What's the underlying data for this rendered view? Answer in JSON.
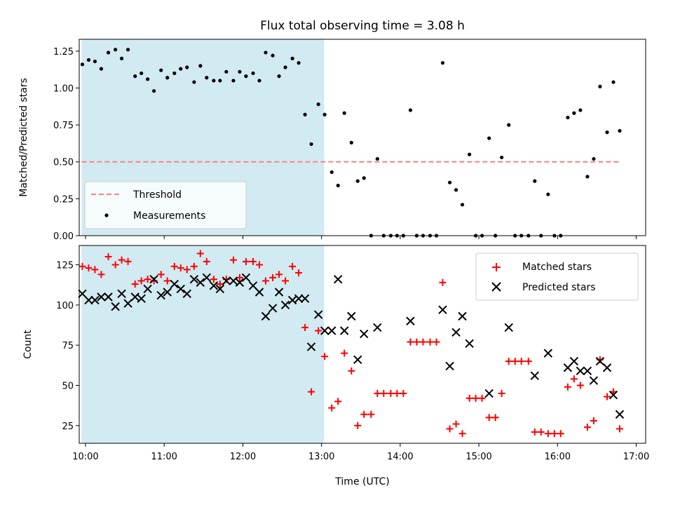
{
  "chart_data": [
    {
      "type": "scatter",
      "title": "Flux total observing time = 3.08 h",
      "xlabel": "",
      "ylabel": "Matched/Predicted stars",
      "xlim": [
        9.92,
        17.12
      ],
      "ylim": [
        0.0,
        1.33
      ],
      "yticks": [
        "0.00",
        "0.25",
        "0.50",
        "0.75",
        "1.00",
        "1.25"
      ],
      "yticks_values": [
        0,
        0.25,
        0.5,
        0.75,
        1.0,
        1.25
      ],
      "shaded_x_range": [
        "9:57",
        "13:02"
      ],
      "shaded_color": "#add8e6",
      "threshold": {
        "name": "Threshold",
        "value": 0.5,
        "x_range": [
          9.95,
          16.78
        ],
        "color": "#ff7f7f"
      },
      "legend": [
        "Threshold",
        "Measurements"
      ],
      "legend_position": "lower left",
      "series": [
        {
          "name": "Measurements",
          "color": "#000000",
          "x": [
            9.96,
            10.04,
            10.12,
            10.2,
            10.29,
            10.38,
            10.46,
            10.54,
            10.63,
            10.71,
            10.79,
            10.87,
            10.96,
            11.04,
            11.13,
            11.21,
            11.29,
            11.38,
            11.46,
            11.54,
            11.63,
            11.71,
            11.79,
            11.88,
            11.96,
            12.04,
            12.13,
            12.21,
            12.29,
            12.38,
            12.46,
            12.54,
            12.63,
            12.71,
            12.79,
            12.87,
            12.96,
            13.04,
            13.13,
            13.21,
            13.29,
            13.38,
            13.46,
            13.54,
            13.63,
            13.71,
            13.79,
            13.88,
            13.96,
            14.04,
            14.13,
            14.21,
            14.29,
            14.38,
            14.46,
            14.54,
            14.63,
            14.71,
            14.79,
            14.88,
            14.96,
            15.04,
            15.13,
            15.21,
            15.29,
            15.38,
            15.46,
            15.54,
            15.63,
            15.71,
            15.79,
            15.88,
            15.96,
            16.04,
            16.13,
            16.21,
            16.29,
            16.38,
            16.46,
            16.54,
            16.63,
            16.71,
            16.79
          ],
          "y": [
            1.16,
            1.19,
            1.18,
            1.13,
            1.24,
            1.26,
            1.2,
            1.26,
            1.08,
            1.1,
            1.06,
            0.98,
            1.12,
            1.07,
            1.1,
            1.13,
            1.14,
            1.04,
            1.15,
            1.07,
            1.05,
            1.05,
            1.11,
            1.05,
            1.11,
            1.08,
            1.1,
            1.05,
            1.24,
            1.22,
            1.08,
            1.14,
            1.2,
            1.17,
            0.82,
            0.62,
            0.89,
            0.82,
            0.43,
            0.34,
            0.83,
            0.63,
            0.37,
            0.39,
            0.0,
            0.52,
            0.0,
            0.0,
            0.0,
            0.0,
            0.85,
            0.0,
            0.0,
            0.0,
            0.0,
            1.17,
            0.36,
            0.31,
            0.21,
            0.55,
            0.0,
            0.0,
            0.66,
            0.0,
            0.53,
            0.75,
            0.0,
            0.0,
            0.0,
            0.37,
            0.0,
            0.28,
            0.0,
            0.0,
            0.8,
            0.83,
            0.85,
            0.4,
            0.52,
            1.01,
            0.7,
            1.04,
            0.71
          ]
        }
      ]
    },
    {
      "type": "scatter",
      "title": "",
      "xlabel": "Time (UTC)",
      "ylabel": "Count",
      "xlim": [
        9.92,
        17.12
      ],
      "ylim": [
        14,
        137
      ],
      "yticks": [
        "25",
        "50",
        "75",
        "100",
        "125"
      ],
      "yticks_values": [
        25,
        50,
        75,
        100,
        125
      ],
      "xticks": [
        "10:00",
        "11:00",
        "12:00",
        "13:00",
        "14:00",
        "15:00",
        "16:00",
        "17:00"
      ],
      "xticks_values": [
        10,
        11,
        12,
        13,
        14,
        15,
        16,
        17
      ],
      "shaded_x_range": [
        "9:57",
        "13:02"
      ],
      "shaded_color": "#add8e6",
      "legend": [
        "Matched stars",
        "Predicted stars"
      ],
      "legend_position": "upper right",
      "series": [
        {
          "name": "Matched stars",
          "color": "#ff0000",
          "marker": "+",
          "x": [
            9.96,
            10.04,
            10.12,
            10.2,
            10.29,
            10.38,
            10.46,
            10.54,
            10.63,
            10.71,
            10.79,
            10.87,
            10.96,
            11.04,
            11.13,
            11.21,
            11.29,
            11.38,
            11.46,
            11.54,
            11.63,
            11.71,
            11.79,
            11.88,
            11.96,
            12.04,
            12.13,
            12.21,
            12.29,
            12.38,
            12.46,
            12.54,
            12.63,
            12.71,
            12.79,
            12.87,
            12.96,
            13.04,
            13.13,
            13.21,
            13.29,
            13.38,
            13.46,
            13.54,
            13.63,
            13.71,
            13.79,
            13.88,
            13.96,
            14.04,
            14.13,
            14.21,
            14.29,
            14.38,
            14.46,
            14.54,
            14.63,
            14.71,
            14.79,
            14.88,
            14.96,
            15.04,
            15.13,
            15.21,
            15.29,
            15.38,
            15.46,
            15.54,
            15.63,
            15.71,
            15.79,
            15.88,
            15.96,
            16.04,
            16.13,
            16.21,
            16.29,
            16.38,
            16.46,
            16.54,
            16.63,
            16.71,
            16.79
          ],
          "y": [
            124,
            123,
            122,
            119,
            130,
            125,
            128,
            127,
            113,
            115,
            116,
            115,
            119,
            115,
            124,
            123,
            122,
            124,
            132,
            127,
            116,
            113,
            116,
            128,
            117,
            127,
            127,
            125,
            115,
            117,
            119,
            115,
            124,
            120,
            86,
            46,
            84,
            68,
            36,
            40,
            70,
            59,
            25,
            32,
            32,
            45,
            45,
            45,
            45,
            45,
            77,
            77,
            77,
            77,
            77,
            114,
            23,
            26,
            20,
            42,
            42,
            42,
            30,
            30,
            45,
            65,
            65,
            65,
            65,
            21,
            21,
            20,
            20,
            20,
            49,
            54,
            50,
            24,
            28,
            66,
            43,
            46,
            23
          ]
        },
        {
          "name": "Predicted stars",
          "color": "#000000",
          "marker": "x",
          "x": [
            9.96,
            10.04,
            10.12,
            10.2,
            10.29,
            10.38,
            10.46,
            10.54,
            10.63,
            10.71,
            10.79,
            10.87,
            10.96,
            11.04,
            11.13,
            11.21,
            11.29,
            11.38,
            11.46,
            11.54,
            11.63,
            11.71,
            11.79,
            11.88,
            11.96,
            12.04,
            12.13,
            12.21,
            12.29,
            12.38,
            12.46,
            12.54,
            12.63,
            12.71,
            12.79,
            12.87,
            12.96,
            13.04,
            13.13,
            13.21,
            13.29,
            13.38,
            13.46,
            13.54,
            13.71,
            14.13,
            14.54,
            14.63,
            14.71,
            14.79,
            14.88,
            15.13,
            15.38,
            15.71,
            15.88,
            16.13,
            16.21,
            16.29,
            16.38,
            16.46,
            16.54,
            16.63,
            16.71,
            16.79
          ],
          "y": [
            107,
            103,
            103,
            105,
            105,
            99,
            107,
            101,
            105,
            104,
            110,
            116,
            106,
            108,
            113,
            110,
            107,
            116,
            114,
            117,
            112,
            110,
            115,
            115,
            114,
            117,
            112,
            108,
            93,
            98,
            108,
            100,
            103,
            104,
            104,
            74,
            94,
            84,
            84,
            116,
            84,
            93,
            66,
            82,
            86,
            90,
            97,
            62,
            83,
            93,
            76,
            45,
            86,
            56,
            70,
            61,
            65,
            59,
            59,
            53,
            65,
            61,
            44,
            32
          ]
        }
      ]
    }
  ]
}
